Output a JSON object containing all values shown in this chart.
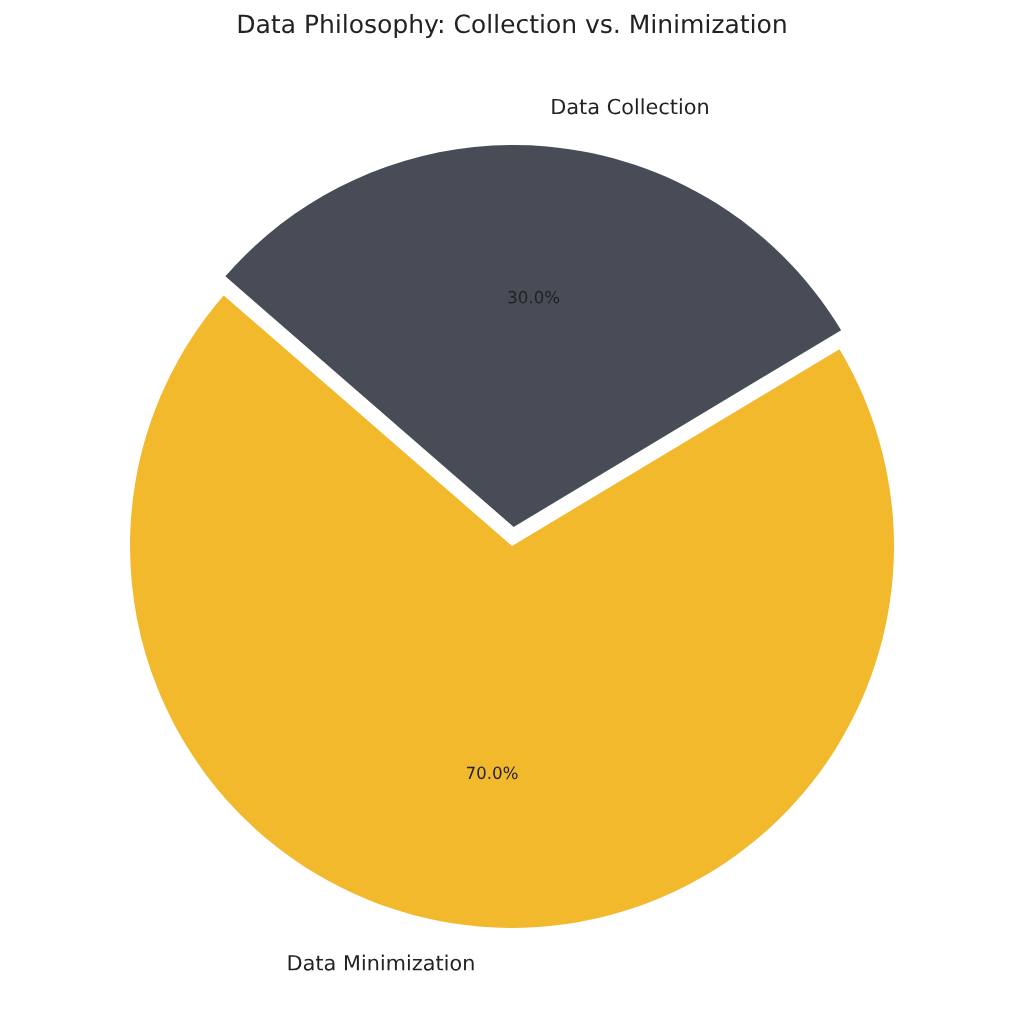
{
  "chart_data": {
    "type": "pie",
    "title": "Data Philosophy: Collection vs. Minimization",
    "categories": [
      "Data Collection",
      "Data Minimization"
    ],
    "values": [
      30,
      70
    ],
    "colors": [
      "#474c56",
      "#f3b92d"
    ],
    "value_labels": [
      "30.0%",
      "70.0%"
    ]
  }
}
